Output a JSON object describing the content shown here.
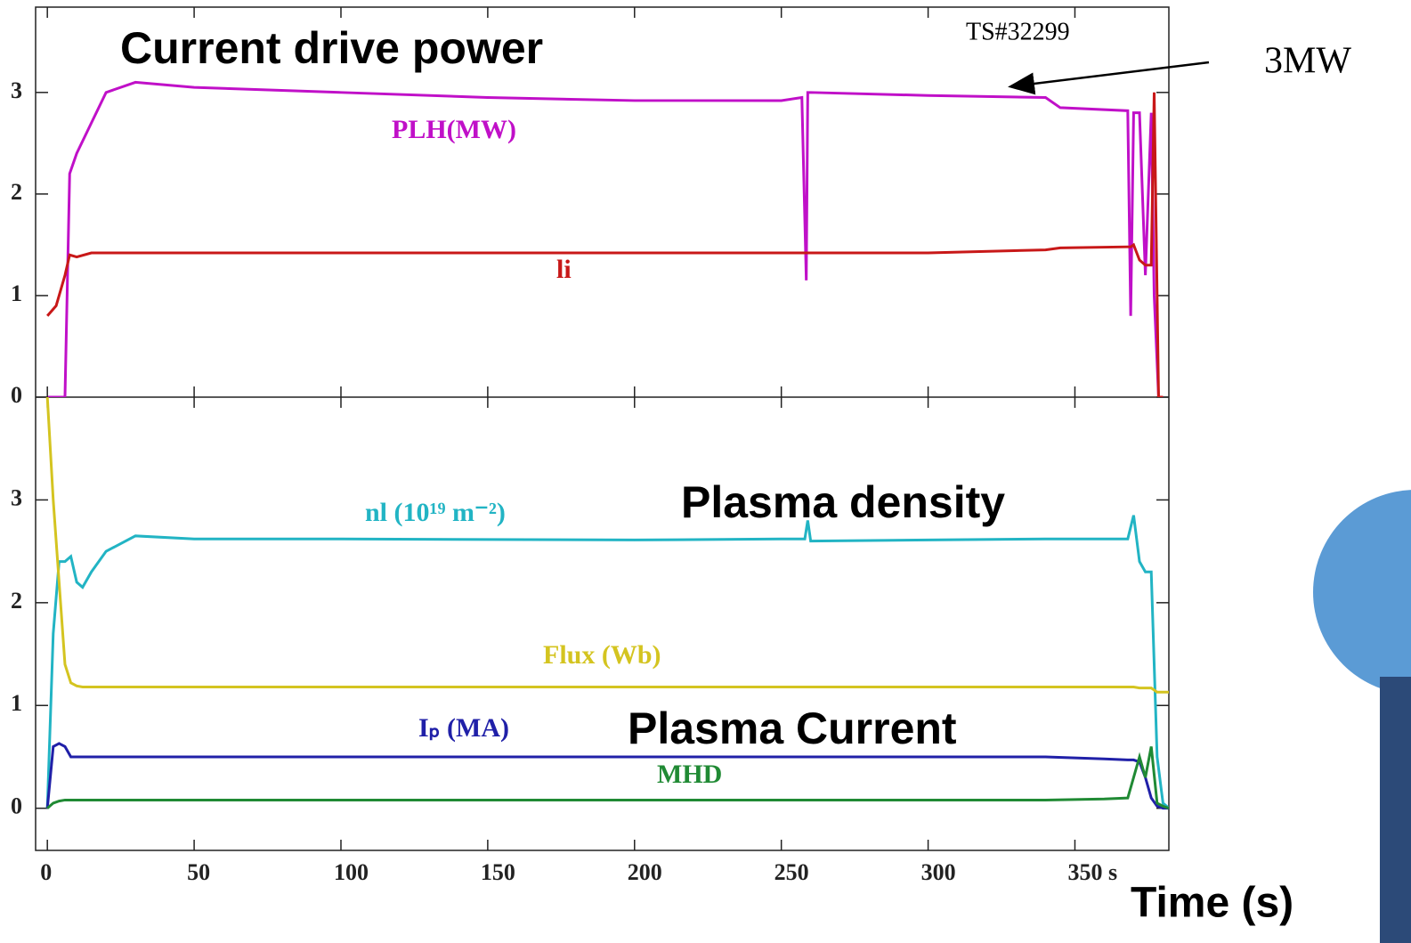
{
  "chart_data": [
    {
      "type": "line",
      "annotations": [
        "Current drive power",
        "TS#32299",
        "3MW"
      ],
      "xlim": [
        -4,
        382
      ],
      "ylim": [
        0,
        3.84
      ],
      "yticks": [
        0,
        1,
        2,
        3
      ],
      "x": [
        0,
        3,
        6,
        7.6,
        10,
        15,
        20,
        30,
        50,
        100,
        150,
        200,
        250,
        257,
        258.5,
        259,
        260,
        300,
        340,
        345,
        368,
        369,
        370,
        372,
        374,
        376,
        377,
        378.5,
        380
      ],
      "series": [
        {
          "name": "PLH(MW)",
          "color": "#c010c8",
          "values": [
            0,
            0,
            0,
            2.2,
            2.4,
            2.7,
            3.0,
            3.1,
            3.05,
            3.0,
            2.95,
            2.92,
            2.92,
            2.95,
            1.15,
            3.0,
            3.0,
            2.97,
            2.95,
            2.85,
            2.82,
            0.8,
            2.8,
            2.8,
            1.2,
            2.8,
            1.0,
            0,
            0
          ]
        },
        {
          "name": "li",
          "color": "#c81818",
          "values": [
            0.8,
            0.9,
            1.2,
            1.4,
            1.38,
            1.42,
            1.42,
            1.42,
            1.42,
            1.42,
            1.42,
            1.42,
            1.42,
            1.42,
            1.42,
            1.42,
            1.42,
            1.42,
            1.45,
            1.47,
            1.48,
            1.48,
            1.5,
            1.35,
            1.3,
            1.3,
            3.0,
            0,
            0
          ]
        }
      ]
    },
    {
      "type": "line",
      "annotations": [
        "Plasma density",
        "Plasma Current"
      ],
      "xlabel": "Time (s)",
      "xlim": [
        -4,
        382
      ],
      "ylim": [
        -0.41,
        4.0
      ],
      "yticks": [
        0,
        1,
        2,
        3
      ],
      "xticks": [
        0,
        50,
        100,
        150,
        200,
        250,
        300,
        {
          "value": 350,
          "label": "350 s"
        }
      ],
      "x": [
        0,
        2,
        4,
        6,
        8,
        10,
        12,
        15,
        20,
        30,
        50,
        100,
        200,
        250,
        258,
        259,
        260,
        300,
        340,
        360,
        368,
        370,
        372,
        374,
        376,
        378,
        380,
        382
      ],
      "series": [
        {
          "name": "nl (10¹⁹ m⁻²)",
          "color": "#22b4c4",
          "values": [
            0,
            1.7,
            2.4,
            2.4,
            2.45,
            2.2,
            2.15,
            2.3,
            2.5,
            2.65,
            2.62,
            2.62,
            2.61,
            2.62,
            2.62,
            2.8,
            2.6,
            2.61,
            2.62,
            2.62,
            2.62,
            2.85,
            2.4,
            2.3,
            2.3,
            0.5,
            0.05,
            0
          ]
        },
        {
          "name": "Flux (Wb)",
          "color": "#d4c420",
          "values": [
            4.0,
            3.0,
            2.2,
            1.4,
            1.22,
            1.19,
            1.18,
            1.18,
            1.18,
            1.18,
            1.18,
            1.18,
            1.18,
            1.18,
            1.18,
            1.18,
            1.18,
            1.18,
            1.18,
            1.18,
            1.18,
            1.18,
            1.17,
            1.17,
            1.17,
            1.13,
            1.13,
            1.13
          ]
        },
        {
          "name": "Iₚ (MA)",
          "color": "#2020a8",
          "values": [
            0,
            0.6,
            0.63,
            0.6,
            0.5,
            0.5,
            0.5,
            0.5,
            0.5,
            0.5,
            0.5,
            0.5,
            0.5,
            0.5,
            0.5,
            0.5,
            0.5,
            0.5,
            0.5,
            0.48,
            0.47,
            0.47,
            0.45,
            0.3,
            0.1,
            0.02,
            0,
            0
          ]
        },
        {
          "name": "MHD",
          "color": "#208a34",
          "values": [
            0,
            0.05,
            0.07,
            0.08,
            0.08,
            0.08,
            0.08,
            0.08,
            0.08,
            0.08,
            0.08,
            0.08,
            0.08,
            0.08,
            0.08,
            0.08,
            0.08,
            0.08,
            0.08,
            0.09,
            0.1,
            0.3,
            0.5,
            0.3,
            0.6,
            0.05,
            0.02,
            0
          ]
        }
      ]
    }
  ]
}
